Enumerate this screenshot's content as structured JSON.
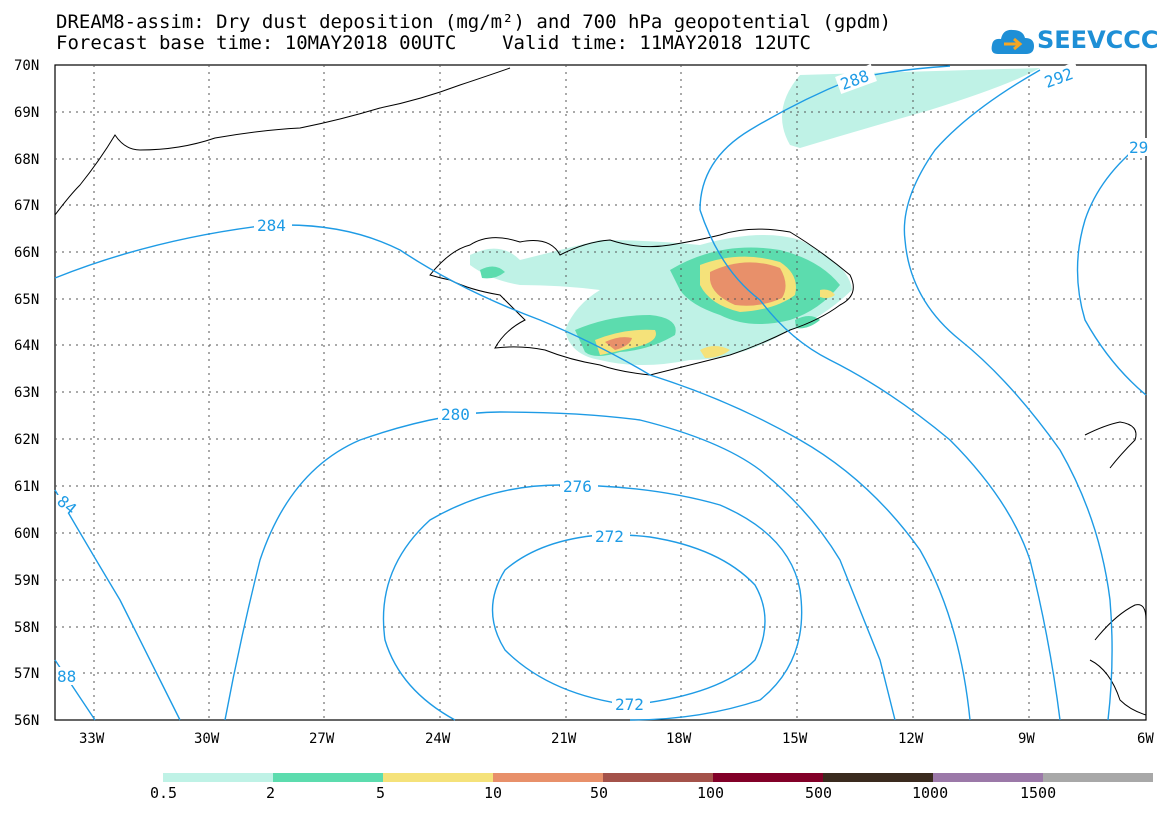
{
  "title_line1": "DREAM8-assim: Dry dust deposition (mg/m²) and 700 hPa geopotential (gpdm)",
  "title_line2": "Forecast base time: 10MAY2018 00UTC    Valid time: 11MAY2018 12UTC",
  "logo_text": "SEEVCCC",
  "lat_labels": [
    "70N",
    "69N",
    "68N",
    "67N",
    "66N",
    "65N",
    "64N",
    "63N",
    "62N",
    "61N",
    "60N",
    "59N",
    "58N",
    "57N",
    "56N"
  ],
  "lon_labels": [
    "33W",
    "30W",
    "27W",
    "24W",
    "21W",
    "18W",
    "15W",
    "12W",
    "9W",
    "6W"
  ],
  "contour_labels": {
    "c284": "284",
    "c288": "288",
    "c292": "292",
    "c29x": "29",
    "c280": "280",
    "c276": "276",
    "c272a": "272",
    "c272b": "272",
    "c84": "84",
    "c88": "88"
  },
  "legend": {
    "labels": [
      "0.5",
      "2",
      "5",
      "10",
      "50",
      "100",
      "500",
      "1000",
      "1500"
    ],
    "colors": [
      "#bff2e6",
      "#5cdcae",
      "#f5e27a",
      "#e8906a",
      "#a4524a",
      "#820028",
      "#3a2a1e",
      "#9b78a8",
      "#a8a8a8"
    ]
  }
}
